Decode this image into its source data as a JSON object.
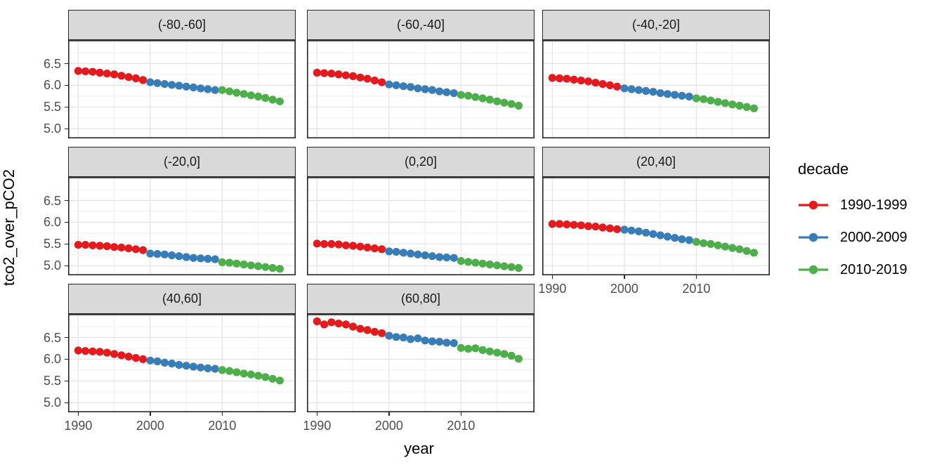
{
  "chart_data": {
    "type": "scatter",
    "xlabel": "year",
    "ylabel": "tco2_over_pCO2",
    "x_ticks": [
      1990,
      2000,
      2010
    ],
    "y_ticks": [
      6.5,
      6.0,
      5.5,
      5.0
    ],
    "x_minor_ticks": [
      1995,
      2005,
      2015
    ],
    "y_major_gridlines": [
      7.0,
      6.5,
      6.0,
      5.5,
      5.0
    ],
    "y_minor_gridlines": [
      6.75,
      6.25,
      5.75,
      5.25
    ],
    "x_domain": [
      1988.6,
      2020.2
    ],
    "y_domain": [
      4.78,
      7.04
    ],
    "grid": true,
    "legend": {
      "title": "decade",
      "position": "right",
      "entries": [
        {
          "label": "1990-1999",
          "color": "#E41A1C",
          "from": 1990,
          "to": 1999
        },
        {
          "label": "2000-2009",
          "color": "#377EB8",
          "from": 2000,
          "to": 2009
        },
        {
          "label": "2010-2019",
          "color": "#4DAF4A",
          "from": 2010,
          "to": 2019
        }
      ]
    },
    "years": [
      1990,
      1991,
      1992,
      1993,
      1994,
      1995,
      1996,
      1997,
      1998,
      1999,
      2000,
      2001,
      2002,
      2003,
      2004,
      2005,
      2006,
      2007,
      2008,
      2009,
      2010,
      2011,
      2012,
      2013,
      2014,
      2015,
      2016,
      2017,
      2018
    ],
    "facets": [
      {
        "label": "(-80,-60]",
        "values": [
          6.33,
          6.32,
          6.31,
          6.29,
          6.27,
          6.25,
          6.22,
          6.19,
          6.16,
          6.12,
          6.07,
          6.05,
          6.03,
          6.01,
          5.99,
          5.97,
          5.95,
          5.93,
          5.91,
          5.89,
          5.89,
          5.86,
          5.83,
          5.8,
          5.77,
          5.74,
          5.71,
          5.67,
          5.63
        ]
      },
      {
        "label": "(-60,-40]",
        "values": [
          6.29,
          6.28,
          6.27,
          6.25,
          6.23,
          6.21,
          6.18,
          6.15,
          6.11,
          6.07,
          6.02,
          6.0,
          5.98,
          5.96,
          5.93,
          5.91,
          5.89,
          5.86,
          5.84,
          5.82,
          5.78,
          5.76,
          5.73,
          5.7,
          5.67,
          5.63,
          5.6,
          5.57,
          5.53
        ]
      },
      {
        "label": "(-40,-20]",
        "values": [
          6.17,
          6.16,
          6.15,
          6.13,
          6.11,
          6.09,
          6.06,
          6.03,
          6.0,
          5.97,
          5.93,
          5.91,
          5.89,
          5.87,
          5.85,
          5.82,
          5.8,
          5.78,
          5.76,
          5.74,
          5.7,
          5.68,
          5.65,
          5.62,
          5.59,
          5.56,
          5.53,
          5.5,
          5.47
        ]
      },
      {
        "label": "(-20,0]",
        "values": [
          5.48,
          5.48,
          5.47,
          5.46,
          5.45,
          5.43,
          5.42,
          5.4,
          5.38,
          5.36,
          5.28,
          5.27,
          5.26,
          5.24,
          5.22,
          5.2,
          5.18,
          5.17,
          5.16,
          5.15,
          5.08,
          5.07,
          5.05,
          5.03,
          5.01,
          4.99,
          4.97,
          4.95,
          4.93
        ]
      },
      {
        "label": "(0,20]",
        "values": [
          5.51,
          5.5,
          5.5,
          5.49,
          5.47,
          5.46,
          5.44,
          5.42,
          5.4,
          5.38,
          5.33,
          5.32,
          5.3,
          5.28,
          5.26,
          5.24,
          5.22,
          5.2,
          5.19,
          5.18,
          5.11,
          5.09,
          5.07,
          5.05,
          5.03,
          5.01,
          4.99,
          4.97,
          4.95
        ]
      },
      {
        "label": "(20,40]",
        "values": [
          5.96,
          5.96,
          5.95,
          5.94,
          5.93,
          5.91,
          5.9,
          5.88,
          5.86,
          5.84,
          5.83,
          5.81,
          5.79,
          5.76,
          5.73,
          5.7,
          5.67,
          5.64,
          5.61,
          5.59,
          5.55,
          5.52,
          5.5,
          5.47,
          5.44,
          5.41,
          5.38,
          5.34,
          5.3
        ]
      },
      {
        "label": "(40,60]",
        "values": [
          6.2,
          6.19,
          6.18,
          6.17,
          6.15,
          6.12,
          6.09,
          6.06,
          6.03,
          6.0,
          5.97,
          5.95,
          5.92,
          5.9,
          5.87,
          5.85,
          5.83,
          5.81,
          5.79,
          5.78,
          5.75,
          5.73,
          5.7,
          5.67,
          5.65,
          5.62,
          5.59,
          5.55,
          5.51
        ]
      },
      {
        "label": "(60,80]",
        "values": [
          6.87,
          6.8,
          6.85,
          6.82,
          6.8,
          6.75,
          6.7,
          6.67,
          6.63,
          6.6,
          6.54,
          6.51,
          6.5,
          6.46,
          6.48,
          6.43,
          6.41,
          6.4,
          6.38,
          6.37,
          6.26,
          6.24,
          6.25,
          6.21,
          6.18,
          6.15,
          6.12,
          6.08,
          6.01
        ]
      }
    ]
  }
}
